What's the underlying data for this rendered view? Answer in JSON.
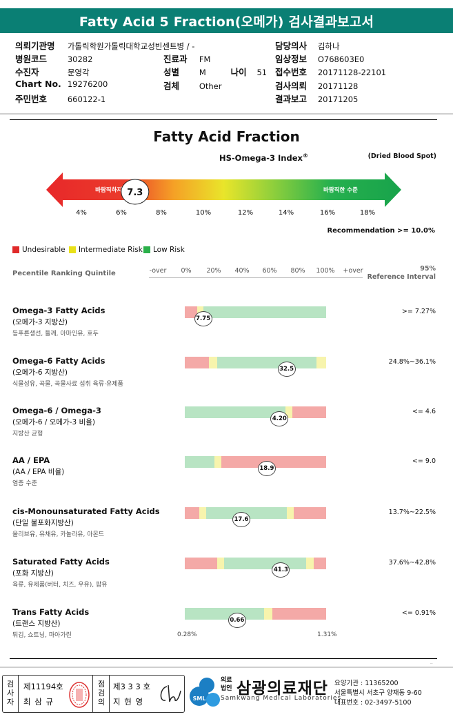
{
  "title": "Fatty Acid 5 Fraction(오메가) 검사결과보고서",
  "patient": {
    "institution_label": "의뢰기관명",
    "institution": "가톨릭학원가톨릭대학교성빈센트병 / -",
    "hospital_code_label": "병원코드",
    "hospital_code": "30282",
    "department_label": "진료과",
    "department": "FM",
    "recipient_label": "수진자",
    "recipient": "문영각",
    "sex_label": "성별",
    "sex": "M",
    "age_label": "나이",
    "age": "51",
    "chart_no_label": "Chart No.",
    "chart_no": "19276200",
    "specimen_label": "검체",
    "specimen": "Other",
    "resident_no_label": "주민번호",
    "resident_no": "660122-1",
    "doctor_label": "담당의사",
    "doctor": "김하나",
    "clinical_info_label": "임상정보",
    "clinical_info": "O768603E0",
    "receipt_no_label": "접수번호",
    "receipt_no": "20171128-22101",
    "request_date_label": "검사의뢰",
    "request_date": "20171128",
    "report_date_label": "결과보고",
    "report_date": "20171205"
  },
  "fraction": {
    "title": "Fatty Acid Fraction",
    "index_label": "HS-Omega-3 Index",
    "index_mark": "®",
    "dried": "(Dried Blood Spot)",
    "left_label": "바람직하지 않은",
    "right_label": "바람직한 수준",
    "value": "7.3",
    "value_num": 7.3,
    "ticks": [
      "4%",
      "6%",
      "8%",
      "10%",
      "12%",
      "14%",
      "16%",
      "18%"
    ],
    "recommendation": "Recommendation  >= 10.0%"
  },
  "legend": [
    {
      "label": "Undesirable",
      "color": "#e02a2a"
    },
    {
      "label": "Intermediate Risk",
      "color": "#e9e11a"
    },
    {
      "label": "Low Risk",
      "color": "#2bb04a"
    }
  ],
  "scale": {
    "label": "Pecentile Ranking Quintile",
    "ticks": [
      "-over",
      "0%",
      "20%",
      "40%",
      "60%",
      "80%",
      "100%",
      "+over"
    ],
    "ref_header_1": "95%",
    "ref_header_2": "Reference Interval"
  },
  "rows": [
    {
      "name": "Omega-3 Fatty Acids",
      "sub": "(오메가-3 지방산)",
      "desc": "등푸른생선, 들깨, 아마인유, 호두",
      "ref": ">= 7.27%",
      "marker": "7.75",
      "marker_pos": 0.13,
      "segments": [
        {
          "c": "red",
          "w": 0.09
        },
        {
          "c": "yel",
          "w": 0.04
        },
        {
          "c": "grn",
          "w": 0.87
        }
      ]
    },
    {
      "name": "Omega-6 Fatty Acids",
      "sub": "(오메가-6 지방산)",
      "desc": "식물성유, 곡물, 곡물사료 섭취 육류·유제품",
      "ref": "24.8%~36.1%",
      "marker": "32.5",
      "marker_pos": 0.72,
      "segments": [
        {
          "c": "red",
          "w": 0.17
        },
        {
          "c": "yel",
          "w": 0.06
        },
        {
          "c": "grn",
          "w": 0.7
        },
        {
          "c": "yel",
          "w": 0.07
        }
      ]
    },
    {
      "name": "Omega-6 / Omega-3",
      "sub": "(오메가-6 / 오메가-3 비율)",
      "desc": "지방산 균형",
      "ref": "<= 4.6",
      "marker": "4.20",
      "marker_pos": 0.67,
      "segments": [
        {
          "c": "grn",
          "w": 0.71
        },
        {
          "c": "yel",
          "w": 0.05
        },
        {
          "c": "red",
          "w": 0.24
        }
      ]
    },
    {
      "name": "AA / EPA",
      "sub": "(AA / EPA 비율)",
      "desc": "염증 수준",
      "ref": "<= 9.0",
      "marker": "18.9",
      "marker_pos": 0.58,
      "segments": [
        {
          "c": "grn",
          "w": 0.21
        },
        {
          "c": "yel",
          "w": 0.05
        },
        {
          "c": "red",
          "w": 0.74
        }
      ]
    },
    {
      "name": "cis-Monounsaturated Fatty Acids",
      "sub": "(단일 불포화지방산)",
      "desc": "올리브유, 유채유, 카놀라유, 아몬드",
      "ref": "13.7%~22.5%",
      "marker": "17.6",
      "marker_pos": 0.4,
      "segments": [
        {
          "c": "red",
          "w": 0.1
        },
        {
          "c": "yel",
          "w": 0.05
        },
        {
          "c": "grn",
          "w": 0.57
        },
        {
          "c": "yel",
          "w": 0.05
        },
        {
          "c": "red",
          "w": 0.23
        }
      ]
    },
    {
      "name": "Saturated Fatty Acids",
      "sub": "(포화 지방산)",
      "desc": "육류, 유제품(버터, 치즈, 우유), 팜유",
      "ref": "37.6%~42.8%",
      "marker": "41.3",
      "marker_pos": 0.68,
      "segments": [
        {
          "c": "red",
          "w": 0.23
        },
        {
          "c": "yel",
          "w": 0.05
        },
        {
          "c": "grn",
          "w": 0.58
        },
        {
          "c": "yel",
          "w": 0.05
        },
        {
          "c": "red",
          "w": 0.09
        }
      ]
    },
    {
      "name": "Trans Fatty Acids",
      "sub": "(트랜스 지방산)",
      "desc": "튀김, 쇼트닝, 마아가린",
      "ref": "<= 0.91%",
      "marker": "0.66",
      "marker_pos": 0.37,
      "segments": [
        {
          "c": "grn",
          "w": 0.56
        },
        {
          "c": "yel",
          "w": 0.06
        },
        {
          "c": "red",
          "w": 0.38
        }
      ]
    }
  ],
  "trans_range": {
    "low": "0.28%",
    "high": "1.31%"
  },
  "footer": {
    "tester_label": "검사자",
    "tester_no": "제11194호",
    "tester_name": "최 삼 규",
    "reviewer_label": "점검의",
    "reviewer_no": "제3 3 3 호",
    "reviewer_name": "지 현 영",
    "inst_prefix_1": "의료",
    "inst_prefix_2": "법인",
    "inst_name": "삼광의료재단",
    "inst_en": "Samkwang Medical Laboratories",
    "logo_text": "SML",
    "inst_code": "요양기관 : 11365200",
    "inst_addr": "서울특별시 서초구 양재동 9-60",
    "inst_phone": "대표번호 : 02-3497-5100"
  }
}
